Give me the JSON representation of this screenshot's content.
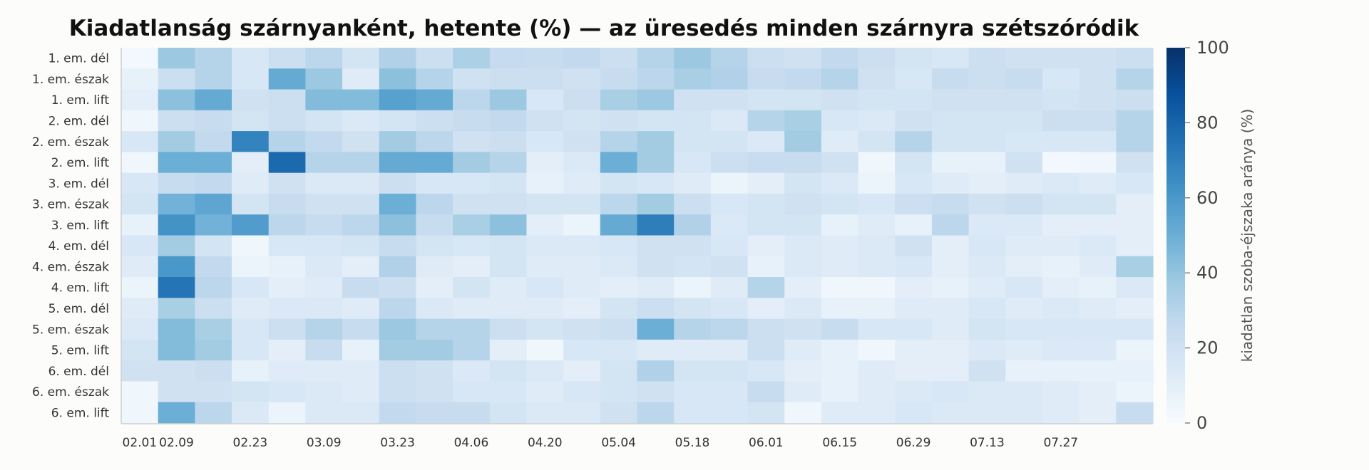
{
  "chart_data": {
    "type": "heatmap",
    "title": "Kiadatlanság szárnyanként, hetente (%) — az üresedés minden szárnyra szétszóródik",
    "rows": [
      "1. em. dél",
      "1. em. észak",
      "1. em. lift",
      "2. em. dél",
      "2. em. észak",
      "2. em. lift",
      "3. em. dél",
      "3. em. észak",
      "3. em. lift",
      "4. em. dél",
      "4. em. észak",
      "4. em. lift",
      "5. em. dél",
      "5. em. észak",
      "5. em. lift",
      "6. em. dél",
      "6. em. észak",
      "6. em. lift"
    ],
    "x_tick_labels": [
      "02.01",
      "02.09",
      "02.23",
      "03.09",
      "03.23",
      "04.06",
      "04.20",
      "05.04",
      "05.18",
      "06.01",
      "06.15",
      "06.29",
      "07.13",
      "07.27"
    ],
    "colorbar": {
      "label": "kiadatlan szoba-éjszaka aránya (%)",
      "min": 0,
      "max": 100,
      "ticks": [
        0,
        20,
        40,
        60,
        80,
        100
      ]
    },
    "colorscale": [
      "#f7fbff",
      "#deebf7",
      "#c6dbef",
      "#9ecae1",
      "#6baed6",
      "#4292c6",
      "#2171b5",
      "#08519c",
      "#08306b"
    ],
    "values": [
      [
        2,
        38,
        30,
        16,
        22,
        28,
        18,
        32,
        22,
        33,
        25,
        24,
        26,
        22,
        30,
        38,
        30,
        22,
        20,
        26,
        22,
        18,
        16,
        22,
        20,
        20,
        20,
        22
      ],
      [
        8,
        22,
        30,
        16,
        52,
        38,
        12,
        42,
        30,
        20,
        22,
        22,
        20,
        24,
        28,
        34,
        32,
        24,
        26,
        30,
        20,
        16,
        24,
        22,
        24,
        16,
        20,
        30
      ],
      [
        10,
        42,
        52,
        20,
        22,
        44,
        44,
        56,
        52,
        28,
        38,
        16,
        22,
        34,
        38,
        20,
        20,
        18,
        18,
        20,
        18,
        18,
        20,
        20,
        20,
        18,
        20,
        22
      ],
      [
        4,
        22,
        24,
        18,
        22,
        18,
        14,
        18,
        22,
        24,
        26,
        20,
        18,
        20,
        18,
        18,
        14,
        30,
        34,
        16,
        14,
        20,
        18,
        18,
        18,
        22,
        22,
        30
      ],
      [
        16,
        36,
        26,
        68,
        30,
        26,
        20,
        36,
        28,
        20,
        22,
        16,
        20,
        30,
        36,
        18,
        18,
        14,
        36,
        12,
        18,
        30,
        18,
        18,
        16,
        16,
        16,
        30
      ],
      [
        4,
        50,
        50,
        10,
        78,
        30,
        30,
        52,
        52,
        36,
        30,
        10,
        14,
        50,
        36,
        16,
        22,
        24,
        24,
        20,
        4,
        18,
        8,
        8,
        20,
        2,
        4,
        20
      ],
      [
        16,
        24,
        26,
        12,
        20,
        14,
        14,
        22,
        16,
        16,
        18,
        8,
        12,
        18,
        16,
        12,
        6,
        10,
        18,
        14,
        6,
        16,
        12,
        10,
        12,
        14,
        12,
        16
      ],
      [
        18,
        48,
        54,
        18,
        24,
        20,
        20,
        50,
        28,
        20,
        20,
        18,
        18,
        28,
        36,
        22,
        16,
        18,
        20,
        18,
        16,
        22,
        24,
        20,
        22,
        18,
        18,
        10
      ],
      [
        8,
        62,
        48,
        58,
        28,
        24,
        28,
        42,
        24,
        34,
        42,
        10,
        6,
        52,
        70,
        32,
        14,
        18,
        18,
        8,
        12,
        8,
        28,
        14,
        14,
        10,
        10,
        10
      ],
      [
        16,
        36,
        18,
        4,
        16,
        16,
        18,
        24,
        18,
        16,
        18,
        14,
        14,
        16,
        20,
        20,
        16,
        10,
        14,
        12,
        14,
        20,
        10,
        16,
        12,
        12,
        14,
        10
      ],
      [
        12,
        60,
        26,
        6,
        8,
        14,
        10,
        32,
        12,
        10,
        18,
        12,
        12,
        14,
        20,
        18,
        20,
        8,
        14,
        12,
        14,
        16,
        10,
        14,
        10,
        8,
        12,
        34
      ],
      [
        6,
        74,
        28,
        16,
        10,
        12,
        24,
        22,
        10,
        18,
        12,
        16,
        12,
        10,
        12,
        6,
        12,
        30,
        10,
        4,
        4,
        10,
        8,
        12,
        16,
        10,
        8,
        14
      ],
      [
        12,
        34,
        22,
        12,
        14,
        14,
        12,
        28,
        14,
        12,
        12,
        12,
        10,
        18,
        22,
        18,
        16,
        10,
        14,
        8,
        8,
        12,
        12,
        16,
        12,
        14,
        12,
        10
      ],
      [
        14,
        44,
        34,
        16,
        22,
        30,
        24,
        38,
        30,
        30,
        22,
        18,
        20,
        22,
        50,
        30,
        28,
        22,
        20,
        24,
        16,
        16,
        12,
        18,
        16,
        16,
        16,
        16
      ],
      [
        18,
        44,
        36,
        16,
        10,
        24,
        8,
        36,
        36,
        30,
        10,
        4,
        16,
        16,
        12,
        12,
        12,
        22,
        12,
        8,
        4,
        10,
        10,
        14,
        12,
        14,
        14,
        6
      ],
      [
        20,
        20,
        22,
        8,
        12,
        12,
        12,
        22,
        20,
        14,
        18,
        14,
        10,
        18,
        32,
        18,
        18,
        16,
        10,
        8,
        12,
        10,
        10,
        20,
        8,
        8,
        8,
        8
      ],
      [
        4,
        20,
        20,
        18,
        16,
        14,
        12,
        22,
        20,
        16,
        16,
        12,
        16,
        18,
        20,
        16,
        16,
        24,
        12,
        8,
        12,
        14,
        16,
        14,
        14,
        12,
        10,
        6
      ],
      [
        4,
        50,
        28,
        14,
        6,
        14,
        14,
        26,
        24,
        24,
        18,
        14,
        14,
        20,
        28,
        16,
        16,
        18,
        4,
        12,
        12,
        16,
        14,
        14,
        14,
        12,
        10,
        24
      ]
    ]
  }
}
